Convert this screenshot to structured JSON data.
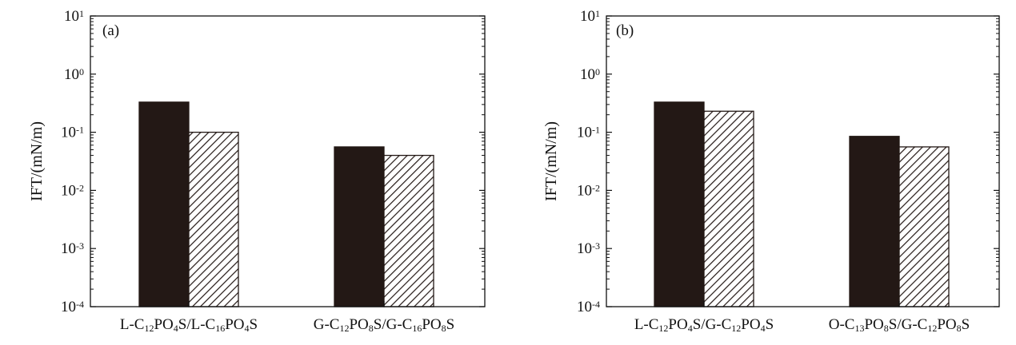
{
  "chart_data": [
    {
      "type": "bar",
      "panel_label": "(a)",
      "ylabel": "IFT/(mN/m)",
      "yscale": "log",
      "ylim": [
        0.0001,
        10
      ],
      "ytick_labels": [
        {
          "base": "10",
          "exp": "-4"
        },
        {
          "base": "10",
          "exp": "-3"
        },
        {
          "base": "10",
          "exp": "-2"
        },
        {
          "base": "10",
          "exp": "-1"
        },
        {
          "base": "10",
          "exp": "0"
        },
        {
          "base": "10",
          "exp": "1"
        }
      ],
      "categories": [
        [
          {
            "t": "L-C",
            "s": ""
          },
          {
            "t": "12",
            "s": "sub"
          },
          {
            "t": "PO",
            "s": ""
          },
          {
            "t": "4",
            "s": "sub"
          },
          {
            "t": "S/L-C",
            "s": ""
          },
          {
            "t": "16",
            "s": "sub"
          },
          {
            "t": "PO",
            "s": ""
          },
          {
            "t": "4",
            "s": "sub"
          },
          {
            "t": "S",
            "s": ""
          }
        ],
        [
          {
            "t": "G-C",
            "s": ""
          },
          {
            "t": "12",
            "s": "sub"
          },
          {
            "t": "PO",
            "s": ""
          },
          {
            "t": "8",
            "s": "sub"
          },
          {
            "t": "S/G-C",
            "s": ""
          },
          {
            "t": "16",
            "s": "sub"
          },
          {
            "t": "PO",
            "s": ""
          },
          {
            "t": "8",
            "s": "sub"
          },
          {
            "t": "S",
            "s": ""
          }
        ]
      ],
      "series": [
        {
          "fill": "solid",
          "color": "#231815",
          "values": [
            0.33,
            0.056
          ]
        },
        {
          "fill": "hatched",
          "color": "#231815",
          "values": [
            0.1,
            0.04
          ]
        }
      ],
      "grid": false,
      "legend": "none"
    },
    {
      "type": "bar",
      "panel_label": "(b)",
      "ylabel": "IFT/(mN/m)",
      "yscale": "log",
      "ylim": [
        0.0001,
        10
      ],
      "ytick_labels": [
        {
          "base": "10",
          "exp": "-4"
        },
        {
          "base": "10",
          "exp": "-3"
        },
        {
          "base": "10",
          "exp": "-2"
        },
        {
          "base": "10",
          "exp": "-1"
        },
        {
          "base": "10",
          "exp": "0"
        },
        {
          "base": "10",
          "exp": "1"
        }
      ],
      "categories": [
        [
          {
            "t": "L-C",
            "s": ""
          },
          {
            "t": "12",
            "s": "sub"
          },
          {
            "t": "PO",
            "s": ""
          },
          {
            "t": "4",
            "s": "sub"
          },
          {
            "t": "S/G-C",
            "s": ""
          },
          {
            "t": "12",
            "s": "sub"
          },
          {
            "t": "PO",
            "s": ""
          },
          {
            "t": "4",
            "s": "sub"
          },
          {
            "t": "S",
            "s": ""
          }
        ],
        [
          {
            "t": "O-C",
            "s": ""
          },
          {
            "t": "13",
            "s": "sub"
          },
          {
            "t": "PO",
            "s": ""
          },
          {
            "t": "8",
            "s": "sub"
          },
          {
            "t": "S/G-C",
            "s": ""
          },
          {
            "t": "12",
            "s": "sub"
          },
          {
            "t": "PO",
            "s": ""
          },
          {
            "t": "8",
            "s": "sub"
          },
          {
            "t": "S",
            "s": ""
          }
        ]
      ],
      "series": [
        {
          "fill": "solid",
          "color": "#231815",
          "values": [
            0.33,
            0.085
          ]
        },
        {
          "fill": "hatched",
          "color": "#231815",
          "values": [
            0.23,
            0.056
          ]
        }
      ],
      "grid": false,
      "legend": "none"
    }
  ]
}
